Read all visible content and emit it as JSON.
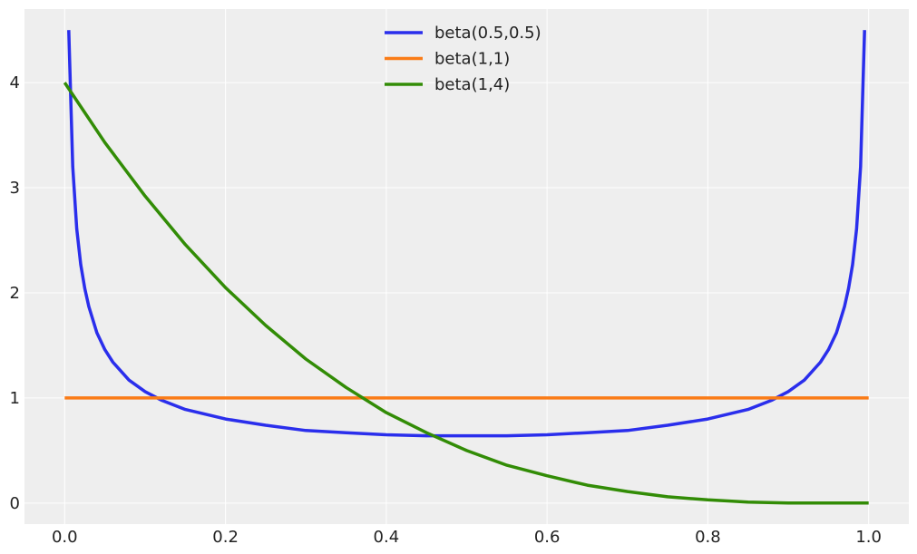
{
  "chart_data": {
    "type": "line",
    "title": "",
    "xlabel": "",
    "ylabel": "",
    "xlim": [
      -0.05,
      1.05
    ],
    "ylim": [
      -0.2,
      4.7
    ],
    "xticks": [
      0.0,
      0.2,
      0.4,
      0.6,
      0.8,
      1.0
    ],
    "xtick_labels": [
      "0.0",
      "0.2",
      "0.4",
      "0.6",
      "0.8",
      "1.0"
    ],
    "yticks": [
      0,
      1,
      2,
      3,
      4
    ],
    "ytick_labels": [
      "0",
      "1",
      "2",
      "3",
      "4"
    ],
    "grid": true,
    "legend_position": "top-center",
    "background_color": "#eeeeee",
    "grid_color": "#ffffff",
    "series": [
      {
        "name": "beta(0.5,0.5)",
        "color": "#2a2eec",
        "x": [
          0.005,
          0.01,
          0.015,
          0.02,
          0.025,
          0.03,
          0.04,
          0.05,
          0.06,
          0.08,
          0.1,
          0.12,
          0.15,
          0.2,
          0.25,
          0.3,
          0.35,
          0.4,
          0.45,
          0.5,
          0.55,
          0.6,
          0.65,
          0.7,
          0.75,
          0.8,
          0.85,
          0.88,
          0.9,
          0.92,
          0.94,
          0.95,
          0.96,
          0.97,
          0.975,
          0.98,
          0.985,
          0.99,
          0.995
        ],
        "values": [
          4.5,
          3.2,
          2.61,
          2.27,
          2.04,
          1.87,
          1.62,
          1.46,
          1.34,
          1.17,
          1.06,
          0.98,
          0.89,
          0.8,
          0.74,
          0.69,
          0.67,
          0.65,
          0.64,
          0.64,
          0.64,
          0.65,
          0.67,
          0.69,
          0.74,
          0.8,
          0.89,
          0.98,
          1.06,
          1.17,
          1.34,
          1.46,
          1.62,
          1.87,
          2.04,
          2.27,
          2.61,
          3.2,
          4.5
        ]
      },
      {
        "name": "beta(1,1)",
        "color": "#fa7c17",
        "x": [
          0.0,
          1.0
        ],
        "values": [
          1.0,
          1.0
        ]
      },
      {
        "name": "beta(1,4)",
        "color": "#328c06",
        "x": [
          0.0,
          0.05,
          0.1,
          0.15,
          0.2,
          0.25,
          0.3,
          0.35,
          0.4,
          0.45,
          0.5,
          0.55,
          0.6,
          0.65,
          0.7,
          0.75,
          0.8,
          0.85,
          0.9,
          0.95,
          1.0
        ],
        "values": [
          4.0,
          3.43,
          2.92,
          2.46,
          2.05,
          1.69,
          1.37,
          1.1,
          0.86,
          0.67,
          0.5,
          0.36,
          0.26,
          0.17,
          0.11,
          0.06,
          0.03,
          0.01,
          0.0,
          0.0,
          0.0
        ]
      }
    ]
  }
}
